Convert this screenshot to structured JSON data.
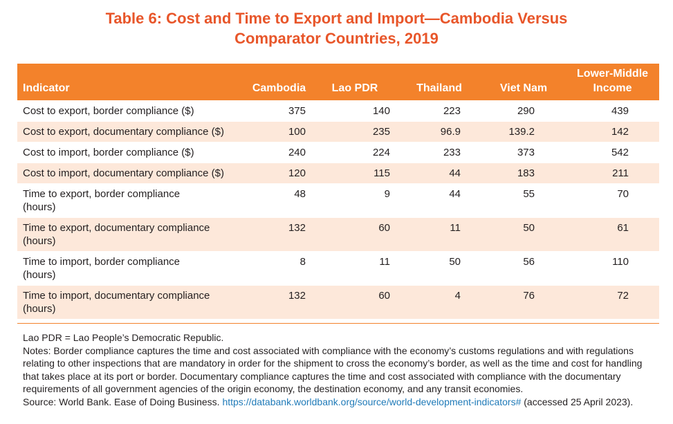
{
  "title": {
    "line1": "Table 6: Cost and Time to Export and Import—Cambodia Versus",
    "line2": "Comparator Countries, 2019"
  },
  "table": {
    "header": {
      "indicator": "Indicator",
      "cambodia": "Cambodia",
      "lao": "Lao PDR",
      "thailand": "Thailand",
      "vietnam": "Viet Nam",
      "lmi_line1": "Lower-Middle",
      "lmi_line2": "Income"
    },
    "rows": [
      {
        "indicator_l1": "Cost to export, border compliance ($)",
        "indicator_l2": "",
        "cambodia": "375",
        "lao": "140",
        "thailand": "223",
        "vietnam": "290",
        "lmi": "439"
      },
      {
        "indicator_l1": "Cost to export, documentary compliance ($)",
        "indicator_l2": "",
        "cambodia": "100",
        "lao": "235",
        "thailand": "96.9",
        "vietnam": "139.2",
        "lmi": "142"
      },
      {
        "indicator_l1": "Cost to import, border compliance ($)",
        "indicator_l2": "",
        "cambodia": "240",
        "lao": "224",
        "thailand": "233",
        "vietnam": "373",
        "lmi": "542"
      },
      {
        "indicator_l1": "Cost to import, documentary compliance ($)",
        "indicator_l2": "",
        "cambodia": "120",
        "lao": "115",
        "thailand": "44",
        "vietnam": "183",
        "lmi": "211"
      },
      {
        "indicator_l1": "Time to export, border compliance",
        "indicator_l2": "(hours)",
        "cambodia": "48",
        "lao": "9",
        "thailand": "44",
        "vietnam": "55",
        "lmi": "70"
      },
      {
        "indicator_l1": "Time to export, documentary compliance",
        "indicator_l2": "(hours)",
        "cambodia": "132",
        "lao": "60",
        "thailand": "11",
        "vietnam": "50",
        "lmi": "61"
      },
      {
        "indicator_l1": "Time to import, border compliance",
        "indicator_l2": "(hours)",
        "cambodia": "8",
        "lao": "11",
        "thailand": "50",
        "vietnam": "56",
        "lmi": "110"
      },
      {
        "indicator_l1": "Time to import, documentary compliance",
        "indicator_l2": "(hours)",
        "cambodia": "132",
        "lao": "60",
        "thailand": "4",
        "vietnam": "76",
        "lmi": "72"
      }
    ]
  },
  "notes": {
    "abbrev": "Lao PDR = Lao People’s Democratic Republic.",
    "notes_text": "Notes: Border compliance captures the time and cost associated with compliance with the economy’s customs regulations and with regulations relating to other inspections that are mandatory in order for the shipment to cross the economy’s border, as well as the time and cost for handling that takes place at its port or border. Documentary compliance captures the time and cost associated with compliance with the documentary requirements of all government agencies of the origin economy, the destination economy, and any transit economies.",
    "source_prefix": "Source: World Bank. Ease of Doing Business. ",
    "source_link": "https://databank.worldbank.org/source/world-development-indicators#",
    "source_suffix": " (accessed 25 April 2023)."
  },
  "colors": {
    "title": "#e8562a",
    "header_bg": "#f3822b",
    "stripe": "#fde8da",
    "link": "#1f7ab8"
  }
}
